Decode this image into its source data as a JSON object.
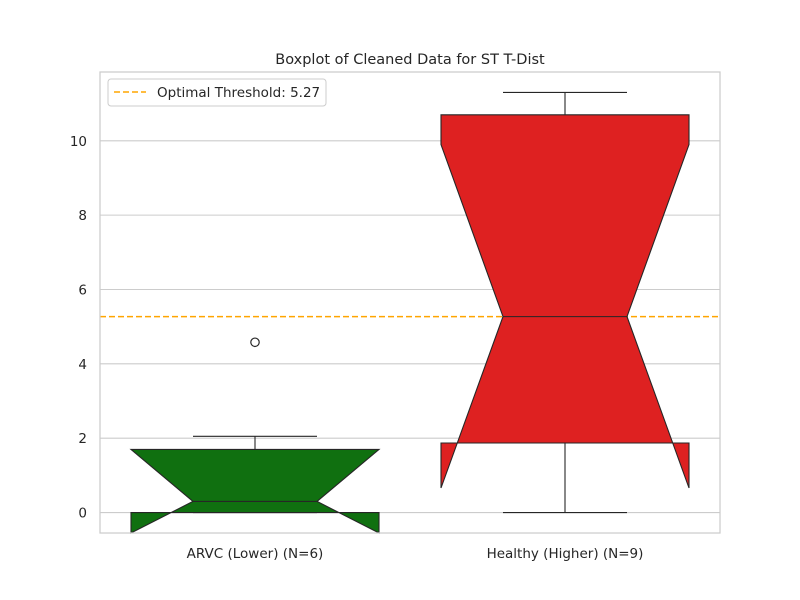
{
  "chart_data": {
    "type": "box",
    "title": "Boxplot of Cleaned Data for ST T-Dist",
    "xlabel": "",
    "ylabel": "",
    "ylim": [
      -0.55,
      11.85
    ],
    "yticks": [
      0,
      2,
      4,
      6,
      8,
      10
    ],
    "grid": "horizontal",
    "legend_position": "top-left",
    "notched": true,
    "categories": [
      "ARVC (Lower) (N=6)",
      "Healthy (Higher) (N=9)"
    ],
    "boxes": [
      {
        "category": "ARVC (Lower) (N=6)",
        "color": "#107010",
        "q1": 0.0,
        "median": 0.3,
        "q3": 1.7,
        "notch_low": -0.55,
        "notch_high": 1.7,
        "whisker_low": 0.0,
        "whisker_high": 2.05,
        "outliers": [
          4.58
        ]
      },
      {
        "category": "Healthy (Higher) (N=9)",
        "color": "#de2121",
        "q1": 1.87,
        "median": 5.27,
        "q3": 10.7,
        "notch_low": 0.66,
        "notch_high": 9.9,
        "whisker_low": 0.0,
        "whisker_high": 11.3,
        "outliers": []
      }
    ],
    "threshold": {
      "label": "Optimal Threshold: 5.27",
      "value": 5.27,
      "color": "#ffa500",
      "style": "dashed"
    }
  }
}
